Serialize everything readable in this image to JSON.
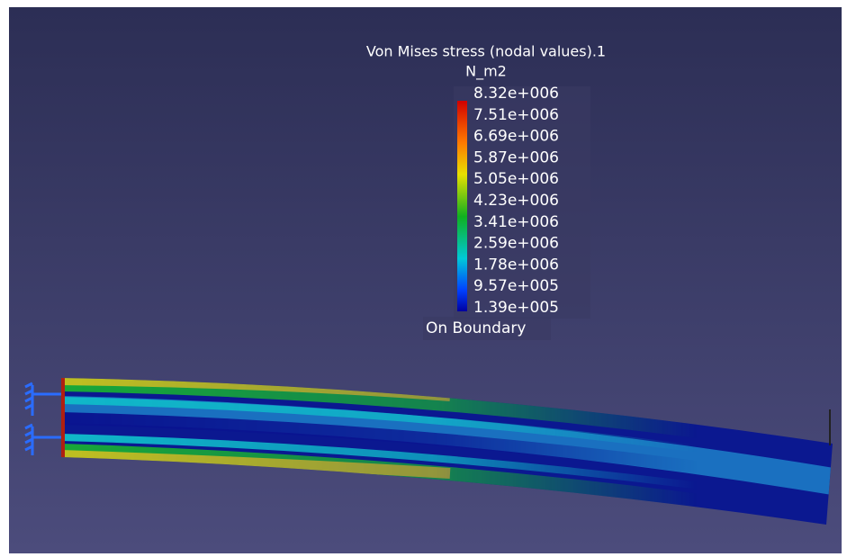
{
  "legend": {
    "title": "Von Mises stress (nodal values).1",
    "unit": "N_m2",
    "labels": [
      "8.32e+006",
      "7.51e+006",
      "6.69e+006",
      "5.87e+006",
      "5.05e+006",
      "4.23e+006",
      "3.41e+006",
      "2.59e+006",
      "1.78e+006",
      "9.57e+005",
      "1.39e+005"
    ],
    "footer": "On Boundary"
  }
}
